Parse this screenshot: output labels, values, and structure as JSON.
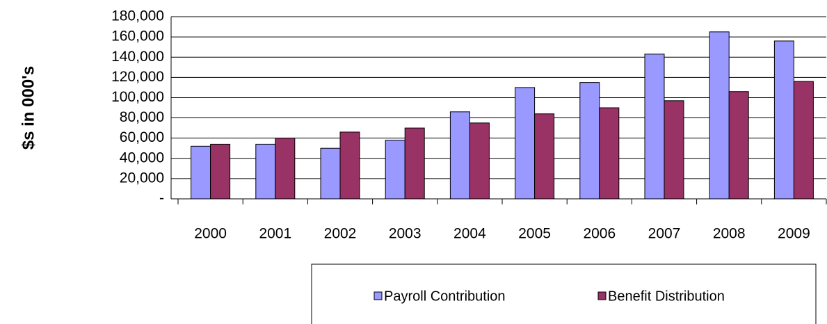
{
  "chart_data": {
    "type": "bar",
    "y_label": "$s in 000's",
    "categories": [
      "2000",
      "2001",
      "2002",
      "2003",
      "2004",
      "2005",
      "2006",
      "2007",
      "2008",
      "2009"
    ],
    "series": [
      {
        "name": "Payroll Contribution",
        "color": "#9999ff",
        "values": [
          52000,
          54000,
          50000,
          58000,
          86000,
          110000,
          115000,
          143000,
          165000,
          156000
        ]
      },
      {
        "name": "Benefit Distribution",
        "color": "#993366",
        "values": [
          54000,
          60000,
          66000,
          70000,
          75000,
          84000,
          90000,
          97000,
          106000,
          116000
        ]
      }
    ],
    "ylim": [
      0,
      180000
    ],
    "yticks": [
      {
        "value": 0,
        "label": "-"
      },
      {
        "value": 20000,
        "label": "20,000"
      },
      {
        "value": 40000,
        "label": "40,000"
      },
      {
        "value": 60000,
        "label": "60,000"
      },
      {
        "value": 80000,
        "label": "80,000"
      },
      {
        "value": 100000,
        "label": "100,000"
      },
      {
        "value": 120000,
        "label": "120,000"
      },
      {
        "value": 140000,
        "label": "140,000"
      },
      {
        "value": 160000,
        "label": "160,000"
      },
      {
        "value": 180000,
        "label": "180,000"
      }
    ],
    "grid": true,
    "legend": "bottom"
  }
}
